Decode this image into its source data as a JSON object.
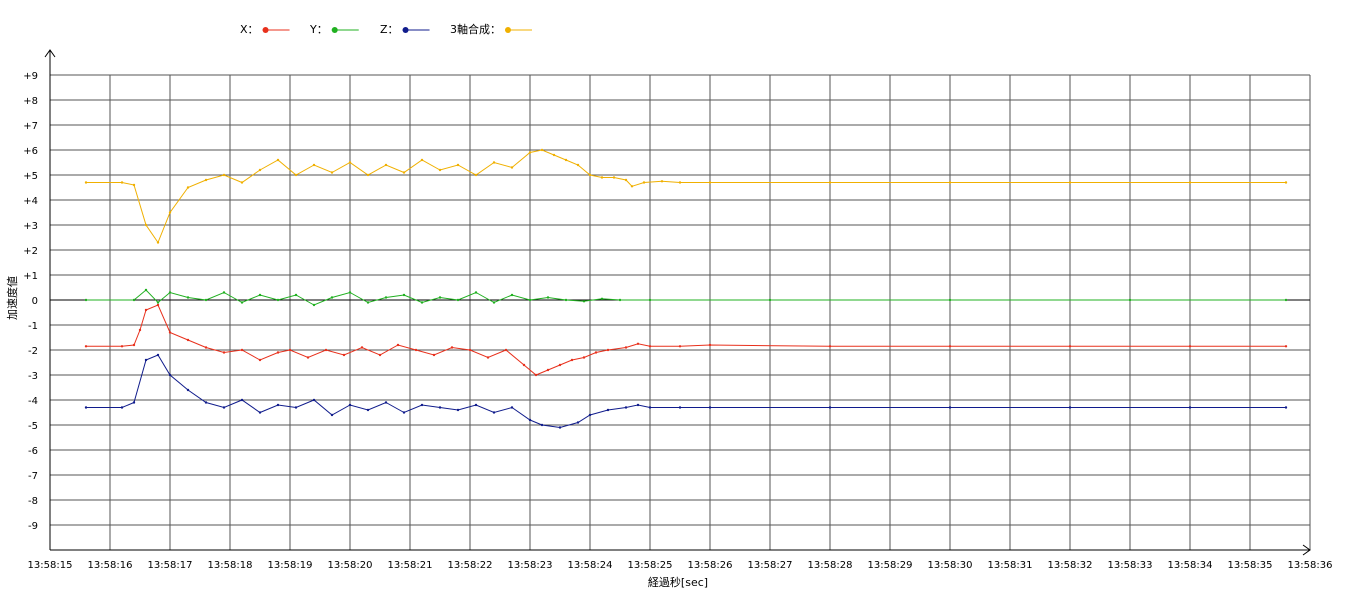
{
  "chart_data": {
    "type": "line",
    "xlabel": "経過秒[sec]",
    "ylabel": "加速度値",
    "ylim": [
      -10,
      10
    ],
    "grid": true,
    "legend_position": "top-left",
    "x_ticks": [
      "13:58:15",
      "13:58:16",
      "13:58:17",
      "13:58:18",
      "13:58:19",
      "13:58:20",
      "13:58:21",
      "13:58:22",
      "13:58:23",
      "13:58:24",
      "13:58:25",
      "13:58:26",
      "13:58:27",
      "13:58:28",
      "13:58:29",
      "13:58:30",
      "13:58:31",
      "13:58:32",
      "13:58:33",
      "13:58:34",
      "13:58:35",
      "13:58:36"
    ],
    "y_ticks": [
      "+9",
      "+8",
      "+7",
      "+6",
      "+5",
      "+4",
      "+3",
      "+2",
      "+1",
      "0",
      "-1",
      "-2",
      "-3",
      "-4",
      "-5",
      "-6",
      "-7",
      "-8",
      "-9"
    ],
    "series": [
      {
        "name": "X",
        "legend_label": "X：",
        "color": "#e8301c",
        "points": [
          [
            15.6,
            -1.85
          ],
          [
            16.2,
            -1.85
          ],
          [
            16.4,
            -1.8
          ],
          [
            16.5,
            -1.2
          ],
          [
            16.6,
            -0.4
          ],
          [
            16.8,
            -0.2
          ],
          [
            17.0,
            -1.3
          ],
          [
            17.3,
            -1.6
          ],
          [
            17.6,
            -1.9
          ],
          [
            17.9,
            -2.1
          ],
          [
            18.2,
            -2.0
          ],
          [
            18.5,
            -2.4
          ],
          [
            18.8,
            -2.1
          ],
          [
            19.0,
            -2.0
          ],
          [
            19.3,
            -2.3
          ],
          [
            19.6,
            -2.0
          ],
          [
            19.9,
            -2.2
          ],
          [
            20.2,
            -1.9
          ],
          [
            20.5,
            -2.2
          ],
          [
            20.8,
            -1.8
          ],
          [
            21.1,
            -2.0
          ],
          [
            21.4,
            -2.2
          ],
          [
            21.7,
            -1.9
          ],
          [
            22.0,
            -2.0
          ],
          [
            22.3,
            -2.3
          ],
          [
            22.6,
            -2.0
          ],
          [
            22.9,
            -2.6
          ],
          [
            23.1,
            -3.0
          ],
          [
            23.3,
            -2.8
          ],
          [
            23.5,
            -2.6
          ],
          [
            23.7,
            -2.4
          ],
          [
            23.9,
            -2.3
          ],
          [
            24.1,
            -2.1
          ],
          [
            24.3,
            -2.0
          ],
          [
            24.6,
            -1.9
          ],
          [
            24.8,
            -1.75
          ],
          [
            25.0,
            -1.85
          ],
          [
            25.5,
            -1.85
          ],
          [
            26.0,
            -1.8
          ],
          [
            28.0,
            -1.85
          ],
          [
            30.0,
            -1.85
          ],
          [
            32.0,
            -1.85
          ],
          [
            34.0,
            -1.85
          ],
          [
            35.6,
            -1.85
          ]
        ]
      },
      {
        "name": "Y",
        "legend_label": "Y：",
        "color": "#20b020",
        "points": [
          [
            15.6,
            0.0
          ],
          [
            16.4,
            0.0
          ],
          [
            16.6,
            0.4
          ],
          [
            16.8,
            -0.1
          ],
          [
            17.0,
            0.3
          ],
          [
            17.3,
            0.1
          ],
          [
            17.6,
            0.0
          ],
          [
            17.9,
            0.3
          ],
          [
            18.2,
            -0.1
          ],
          [
            18.5,
            0.2
          ],
          [
            18.8,
            0.0
          ],
          [
            19.1,
            0.2
          ],
          [
            19.4,
            -0.2
          ],
          [
            19.7,
            0.1
          ],
          [
            20.0,
            0.3
          ],
          [
            20.3,
            -0.1
          ],
          [
            20.6,
            0.1
          ],
          [
            20.9,
            0.2
          ],
          [
            21.2,
            -0.1
          ],
          [
            21.5,
            0.1
          ],
          [
            21.8,
            0.0
          ],
          [
            22.1,
            0.3
          ],
          [
            22.4,
            -0.1
          ],
          [
            22.7,
            0.2
          ],
          [
            23.0,
            0.0
          ],
          [
            23.3,
            0.1
          ],
          [
            23.6,
            0.0
          ],
          [
            23.9,
            -0.05
          ],
          [
            24.2,
            0.05
          ],
          [
            24.5,
            0.0
          ],
          [
            25.0,
            0.0
          ],
          [
            27.0,
            0.0
          ],
          [
            30.0,
            0.0
          ],
          [
            33.0,
            0.0
          ],
          [
            35.6,
            0.0
          ]
        ]
      },
      {
        "name": "Z",
        "legend_label": "Z：",
        "color": "#101c8c",
        "points": [
          [
            15.6,
            -4.3
          ],
          [
            16.2,
            -4.3
          ],
          [
            16.4,
            -4.1
          ],
          [
            16.6,
            -2.4
          ],
          [
            16.8,
            -2.2
          ],
          [
            17.0,
            -3.0
          ],
          [
            17.3,
            -3.6
          ],
          [
            17.6,
            -4.1
          ],
          [
            17.9,
            -4.3
          ],
          [
            18.2,
            -4.0
          ],
          [
            18.5,
            -4.5
          ],
          [
            18.8,
            -4.2
          ],
          [
            19.1,
            -4.3
          ],
          [
            19.4,
            -4.0
          ],
          [
            19.7,
            -4.6
          ],
          [
            20.0,
            -4.2
          ],
          [
            20.3,
            -4.4
          ],
          [
            20.6,
            -4.1
          ],
          [
            20.9,
            -4.5
          ],
          [
            21.2,
            -4.2
          ],
          [
            21.5,
            -4.3
          ],
          [
            21.8,
            -4.4
          ],
          [
            22.1,
            -4.2
          ],
          [
            22.4,
            -4.5
          ],
          [
            22.7,
            -4.3
          ],
          [
            23.0,
            -4.8
          ],
          [
            23.2,
            -5.0
          ],
          [
            23.5,
            -5.1
          ],
          [
            23.8,
            -4.9
          ],
          [
            24.0,
            -4.6
          ],
          [
            24.3,
            -4.4
          ],
          [
            24.6,
            -4.3
          ],
          [
            24.8,
            -4.2
          ],
          [
            25.0,
            -4.3
          ],
          [
            25.5,
            -4.3
          ],
          [
            26.0,
            -4.3
          ],
          [
            28.0,
            -4.3
          ],
          [
            30.0,
            -4.3
          ],
          [
            32.0,
            -4.3
          ],
          [
            34.0,
            -4.3
          ],
          [
            35.6,
            -4.3
          ]
        ]
      },
      {
        "name": "3軸合成",
        "legend_label": "3軸合成：",
        "color": "#f0b000",
        "points": [
          [
            15.6,
            4.7
          ],
          [
            16.2,
            4.7
          ],
          [
            16.4,
            4.6
          ],
          [
            16.6,
            3.0
          ],
          [
            16.8,
            2.3
          ],
          [
            17.0,
            3.5
          ],
          [
            17.3,
            4.5
          ],
          [
            17.6,
            4.8
          ],
          [
            17.9,
            5.0
          ],
          [
            18.2,
            4.7
          ],
          [
            18.5,
            5.2
          ],
          [
            18.8,
            5.6
          ],
          [
            19.1,
            5.0
          ],
          [
            19.4,
            5.4
          ],
          [
            19.7,
            5.1
          ],
          [
            20.0,
            5.5
          ],
          [
            20.3,
            5.0
          ],
          [
            20.6,
            5.4
          ],
          [
            20.9,
            5.1
          ],
          [
            21.2,
            5.6
          ],
          [
            21.5,
            5.2
          ],
          [
            21.8,
            5.4
          ],
          [
            22.1,
            5.0
          ],
          [
            22.4,
            5.5
          ],
          [
            22.7,
            5.3
          ],
          [
            23.0,
            5.9
          ],
          [
            23.2,
            6.0
          ],
          [
            23.4,
            5.8
          ],
          [
            23.6,
            5.6
          ],
          [
            23.8,
            5.4
          ],
          [
            24.0,
            5.0
          ],
          [
            24.2,
            4.9
          ],
          [
            24.4,
            4.9
          ],
          [
            24.6,
            4.8
          ],
          [
            24.7,
            4.55
          ],
          [
            24.9,
            4.7
          ],
          [
            25.2,
            4.75
          ],
          [
            25.5,
            4.7
          ],
          [
            26.0,
            4.7
          ],
          [
            28.0,
            4.7
          ],
          [
            30.0,
            4.7
          ],
          [
            32.0,
            4.7
          ],
          [
            34.0,
            4.7
          ],
          [
            35.6,
            4.7
          ]
        ]
      }
    ]
  }
}
